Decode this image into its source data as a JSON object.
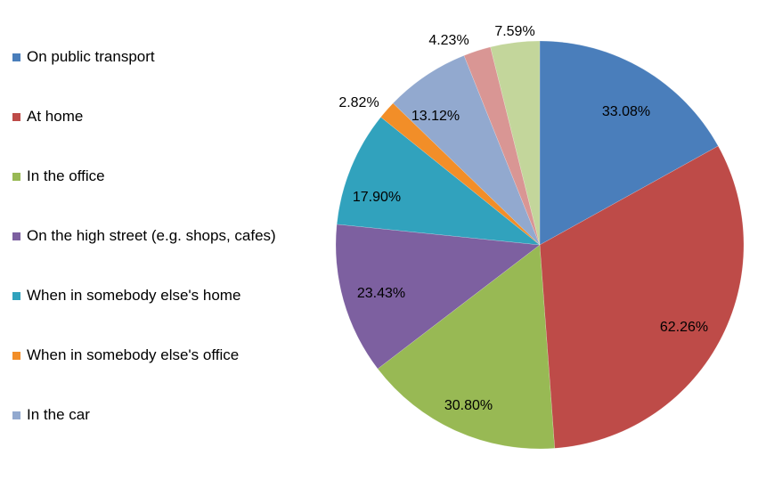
{
  "chart_data": {
    "type": "pie",
    "categories": [
      "On public transport",
      "At home",
      "In the office",
      "On the high street (e.g. shops, cafes)",
      "When in somebody else's home",
      "When in somebody else's office",
      "In the car",
      "",
      ""
    ],
    "values": [
      33.08,
      62.26,
      30.8,
      23.43,
      17.9,
      2.82,
      13.12,
      4.23,
      7.59
    ],
    "data_labels": [
      "33.08%",
      "62.26%",
      "30.80%",
      "23.43%",
      "17.90%",
      "2.82%",
      "13.12%",
      "4.23%",
      "7.59%"
    ],
    "colors": [
      "#4a7ebb",
      "#be4b48",
      "#98b954",
      "#7d60a0",
      "#31a2bd",
      "#f28e28",
      "#92a9cf",
      "#d99694",
      "#c3d69b"
    ],
    "legend_position": "left",
    "title": ""
  }
}
